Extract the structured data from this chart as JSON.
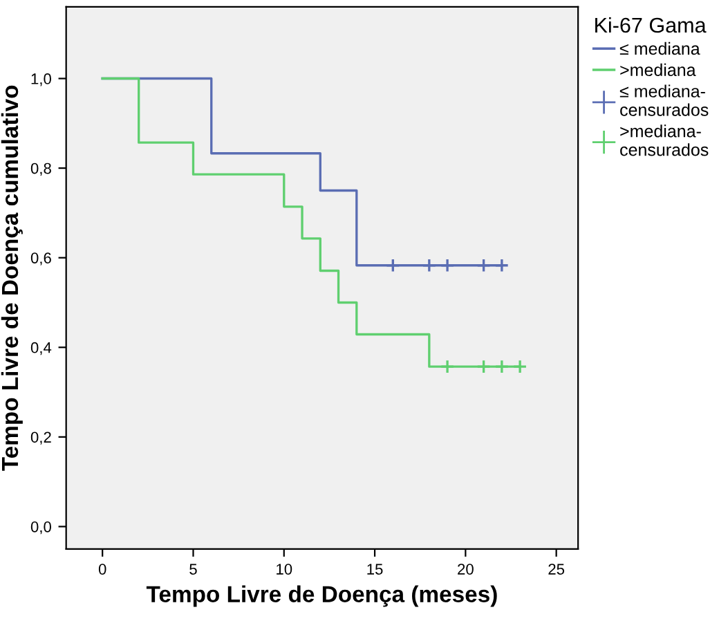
{
  "chart_data": {
    "type": "step",
    "xlabel": "Tempo Livre de Doença (meses)",
    "ylabel": "Tempo Livre de Doença cumulativo",
    "legend_title": "Ki-67 Gama",
    "xlim": [
      -2,
      26.2
    ],
    "ylim": [
      -0.05,
      1.16
    ],
    "xticks": [
      0,
      5,
      10,
      15,
      20,
      25
    ],
    "yticks": [
      {
        "value": 0,
        "label": "0,0"
      },
      {
        "value": 0.2,
        "label": "0,2"
      },
      {
        "value": 0.4,
        "label": "0,4"
      },
      {
        "value": 0.6,
        "label": "0,6"
      },
      {
        "value": 0.8,
        "label": "0,8"
      },
      {
        "value": 1.0,
        "label": "1,0"
      }
    ],
    "grid": false,
    "legend": "right",
    "series": [
      {
        "name": "≤ mediana",
        "color": "#5a6db3",
        "x": [
          0,
          6,
          12,
          14,
          22
        ],
        "values": [
          1.0,
          0.833,
          0.75,
          0.583,
          0.583
        ]
      },
      {
        "name": ">mediana",
        "color": "#5fcf6f",
        "x": [
          0,
          2,
          5,
          10,
          11,
          12,
          13,
          14,
          18,
          23
        ],
        "values": [
          1.0,
          0.857,
          0.786,
          0.714,
          0.643,
          0.571,
          0.5,
          0.429,
          0.357,
          0.357
        ]
      },
      {
        "name": "≤ mediana-\ncensurados",
        "type": "scatter",
        "marker": "cross",
        "color": "#5a6db3",
        "x": [
          16,
          18,
          19,
          21,
          22
        ],
        "values": [
          0.583,
          0.583,
          0.583,
          0.583,
          0.583
        ]
      },
      {
        "name": ">mediana-\ncensurados",
        "type": "scatter",
        "marker": "cross",
        "color": "#5fcf6f",
        "x": [
          19,
          21,
          22,
          23
        ],
        "values": [
          0.357,
          0.357,
          0.357,
          0.357
        ]
      }
    ]
  }
}
